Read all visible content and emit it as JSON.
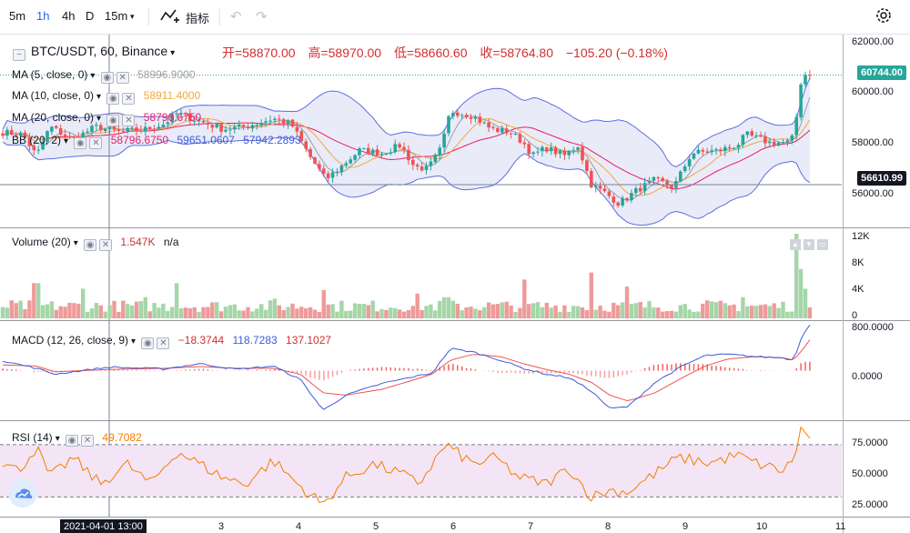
{
  "toolbar": {
    "intervals": [
      "5m",
      "1h",
      "4h",
      "D",
      "15m"
    ],
    "active_interval": "1h",
    "indicators_label": "指标"
  },
  "colors": {
    "up": "#26a69a",
    "down": "#ef5350",
    "ma5": "#9e9e9e",
    "ma10": "#f2a93b",
    "ma20": "#e91e63",
    "bb_band": "#5b6ee1",
    "bb_fill": "#dfe3f7",
    "volume_up": "#a5d6a7",
    "volume_down": "#ef9a9a",
    "macd_line": "#3b5bdb",
    "signal_line": "#ef5350",
    "rsi_line": "#f57c00",
    "rsi_band": "#f3e5f5",
    "accent": "#2962ff"
  },
  "legend": {
    "symbol": "BTC/USDT, 60, Binance",
    "open": "开=58870.00",
    "high": "高=58970.00",
    "low": "低=58660.60",
    "close": "收=58764.80",
    "change": "−105.20 (−0.18%)",
    "ma5_name": "MA (5, close, 0)",
    "ma5_value": "58996.9000",
    "ma10_name": "MA (10, close, 0)",
    "ma10_value": "58911.4000",
    "ma20_name": "MA (20, close, 0)",
    "ma20_value": "58796.6750",
    "bb_name": "BB (20, 2)",
    "bb_basis": "58796.6750",
    "bb_upper": "59651.0607",
    "bb_lower": "57942.2893",
    "volume_name": "Volume (20)",
    "volume_value": "1.547K",
    "volume_ma": "n/a",
    "macd_name": "MACD (12, 26, close, 9)",
    "macd_hist": "−18.3744",
    "macd_macd": "118.7283",
    "macd_signal": "137.1027",
    "rsi_name": "RSI (14)",
    "rsi_value": "49.7082"
  },
  "price_axis": {
    "labels": [
      "62000.00",
      "60000.00",
      "58000.00",
      "56000.00"
    ],
    "last_price_tag": "60744.00",
    "crosshair_price_tag": "56610.99"
  },
  "volume_axis": {
    "labels": [
      "12K",
      "8K",
      "4K",
      "0"
    ]
  },
  "macd_axis": {
    "labels": [
      "800.0000",
      "0.0000"
    ]
  },
  "rsi_axis": {
    "labels": [
      "75.0000",
      "50.0000",
      "25.0000"
    ]
  },
  "time_axis": {
    "labels": [
      "3",
      "4",
      "5",
      "6",
      "7",
      "8",
      "9",
      "10",
      "11"
    ],
    "crosshair_time": "2021-04-01  13:00"
  },
  "chart_data": [
    {
      "type": "candlestick",
      "title": "BTC/USDT, 60, Binance",
      "ylim": [
        55000,
        62200
      ],
      "last_close": 60744.0,
      "crosshair_price": 56610.99,
      "ohlc_last_hovered": {
        "open": 58870.0,
        "high": 58970.0,
        "low": 58660.6,
        "close": 58764.8
      },
      "close_path_knots": [
        [
          0,
          58600
        ],
        [
          25,
          58500
        ],
        [
          40,
          57700
        ],
        [
          55,
          58800
        ],
        [
          80,
          58300
        ],
        [
          105,
          58800
        ],
        [
          130,
          58600
        ],
        [
          160,
          58700
        ],
        [
          180,
          58900
        ],
        [
          195,
          59300
        ],
        [
          220,
          59000
        ],
        [
          245,
          58700
        ],
        [
          270,
          58800
        ],
        [
          300,
          59100
        ],
        [
          320,
          58900
        ],
        [
          340,
          57700
        ],
        [
          358,
          56800
        ],
        [
          375,
          57300
        ],
        [
          395,
          57900
        ],
        [
          420,
          57800
        ],
        [
          440,
          58100
        ],
        [
          455,
          57300
        ],
        [
          470,
          57200
        ],
        [
          485,
          58000
        ],
        [
          495,
          59400
        ],
        [
          520,
          59200
        ],
        [
          540,
          58700
        ],
        [
          560,
          58600
        ],
        [
          575,
          58200
        ],
        [
          585,
          57700
        ],
        [
          600,
          58000
        ],
        [
          620,
          57700
        ],
        [
          635,
          58100
        ],
        [
          650,
          56600
        ],
        [
          665,
          56300
        ],
        [
          680,
          55900
        ],
        [
          700,
          56400
        ],
        [
          720,
          56800
        ],
        [
          740,
          56500
        ],
        [
          760,
          57800
        ],
        [
          790,
          57900
        ],
        [
          810,
          58100
        ],
        [
          820,
          58500
        ],
        [
          845,
          58200
        ],
        [
          865,
          58200
        ],
        [
          872,
          58400
        ],
        [
          877,
          59600
        ],
        [
          882,
          61000
        ],
        [
          887,
          60600
        ],
        [
          893,
          60744
        ]
      ],
      "overlays": [
        "MA (5, close, 0)",
        "MA (10, close, 0)",
        "MA (20, close, 0)",
        "BB (20, 2)"
      ]
    },
    {
      "type": "bar",
      "title": "Volume (20)",
      "ylim": [
        0,
        12000
      ],
      "last_value": 1547,
      "spike_knots": [
        [
          40,
          5000
        ],
        [
          90,
          4200
        ],
        [
          160,
          3000
        ],
        [
          195,
          5000
        ],
        [
          300,
          2800
        ],
        [
          355,
          4000
        ],
        [
          460,
          3500
        ],
        [
          490,
          3000
        ],
        [
          575,
          5500
        ],
        [
          650,
          6500
        ],
        [
          690,
          4500
        ],
        [
          815,
          3000
        ],
        [
          878,
          12000
        ],
        [
          882,
          7000
        ],
        [
          887,
          4200
        ]
      ]
    },
    {
      "type": "line",
      "title": "MACD (12, 26, close, 9)",
      "ylim": [
        -850,
        850
      ],
      "macd_knots": [
        [
          0,
          180
        ],
        [
          40,
          40
        ],
        [
          60,
          -60
        ],
        [
          120,
          60
        ],
        [
          180,
          30
        ],
        [
          220,
          120
        ],
        [
          260,
          20
        ],
        [
          300,
          80
        ],
        [
          330,
          -150
        ],
        [
          355,
          -680
        ],
        [
          380,
          -420
        ],
        [
          420,
          -220
        ],
        [
          450,
          -120
        ],
        [
          475,
          -40
        ],
        [
          495,
          380
        ],
        [
          520,
          320
        ],
        [
          550,
          180
        ],
        [
          575,
          40
        ],
        [
          600,
          -60
        ],
        [
          625,
          -120
        ],
        [
          650,
          -350
        ],
        [
          670,
          -650
        ],
        [
          690,
          -620
        ],
        [
          720,
          -200
        ],
        [
          750,
          80
        ],
        [
          775,
          260
        ],
        [
          800,
          280
        ],
        [
          830,
          240
        ],
        [
          860,
          220
        ],
        [
          872,
          180
        ],
        [
          882,
          620
        ],
        [
          890,
          800
        ]
      ],
      "signal_knots": [
        [
          0,
          100
        ],
        [
          40,
          80
        ],
        [
          60,
          -20
        ],
        [
          120,
          20
        ],
        [
          180,
          40
        ],
        [
          220,
          70
        ],
        [
          260,
          40
        ],
        [
          300,
          40
        ],
        [
          330,
          -60
        ],
        [
          355,
          -380
        ],
        [
          380,
          -420
        ],
        [
          420,
          -320
        ],
        [
          450,
          -180
        ],
        [
          475,
          -60
        ],
        [
          495,
          180
        ],
        [
          520,
          280
        ],
        [
          550,
          240
        ],
        [
          575,
          120
        ],
        [
          600,
          20
        ],
        [
          625,
          -60
        ],
        [
          650,
          -200
        ],
        [
          670,
          -420
        ],
        [
          690,
          -520
        ],
        [
          720,
          -380
        ],
        [
          750,
          -120
        ],
        [
          775,
          80
        ],
        [
          800,
          200
        ],
        [
          830,
          240
        ],
        [
          860,
          220
        ],
        [
          872,
          180
        ],
        [
          882,
          360
        ],
        [
          890,
          530
        ]
      ],
      "hist_last": -18.3744,
      "macd_last": 118.7283,
      "signal_last": 137.1027
    },
    {
      "type": "line",
      "title": "RSI (14)",
      "ylim": [
        15,
        88
      ],
      "bands": [
        30,
        70
      ],
      "last_value": 49.7082,
      "rsi_knots": [
        [
          0,
          57
        ],
        [
          20,
          50
        ],
        [
          40,
          68
        ],
        [
          55,
          45
        ],
        [
          80,
          60
        ],
        [
          110,
          40
        ],
        [
          140,
          55
        ],
        [
          165,
          40
        ],
        [
          195,
          65
        ],
        [
          220,
          55
        ],
        [
          245,
          45
        ],
        [
          270,
          40
        ],
        [
          300,
          58
        ],
        [
          330,
          38
        ],
        [
          355,
          24
        ],
        [
          380,
          45
        ],
        [
          410,
          55
        ],
        [
          440,
          48
        ],
        [
          460,
          40
        ],
        [
          490,
          70
        ],
        [
          520,
          55
        ],
        [
          545,
          60
        ],
        [
          570,
          45
        ],
        [
          600,
          40
        ],
        [
          625,
          52
        ],
        [
          650,
          30
        ],
        [
          670,
          35
        ],
        [
          690,
          34
        ],
        [
          720,
          48
        ],
        [
          745,
          60
        ],
        [
          780,
          56
        ],
        [
          810,
          62
        ],
        [
          830,
          56
        ],
        [
          860,
          50
        ],
        [
          872,
          58
        ],
        [
          880,
          82
        ],
        [
          890,
          74
        ]
      ]
    }
  ]
}
